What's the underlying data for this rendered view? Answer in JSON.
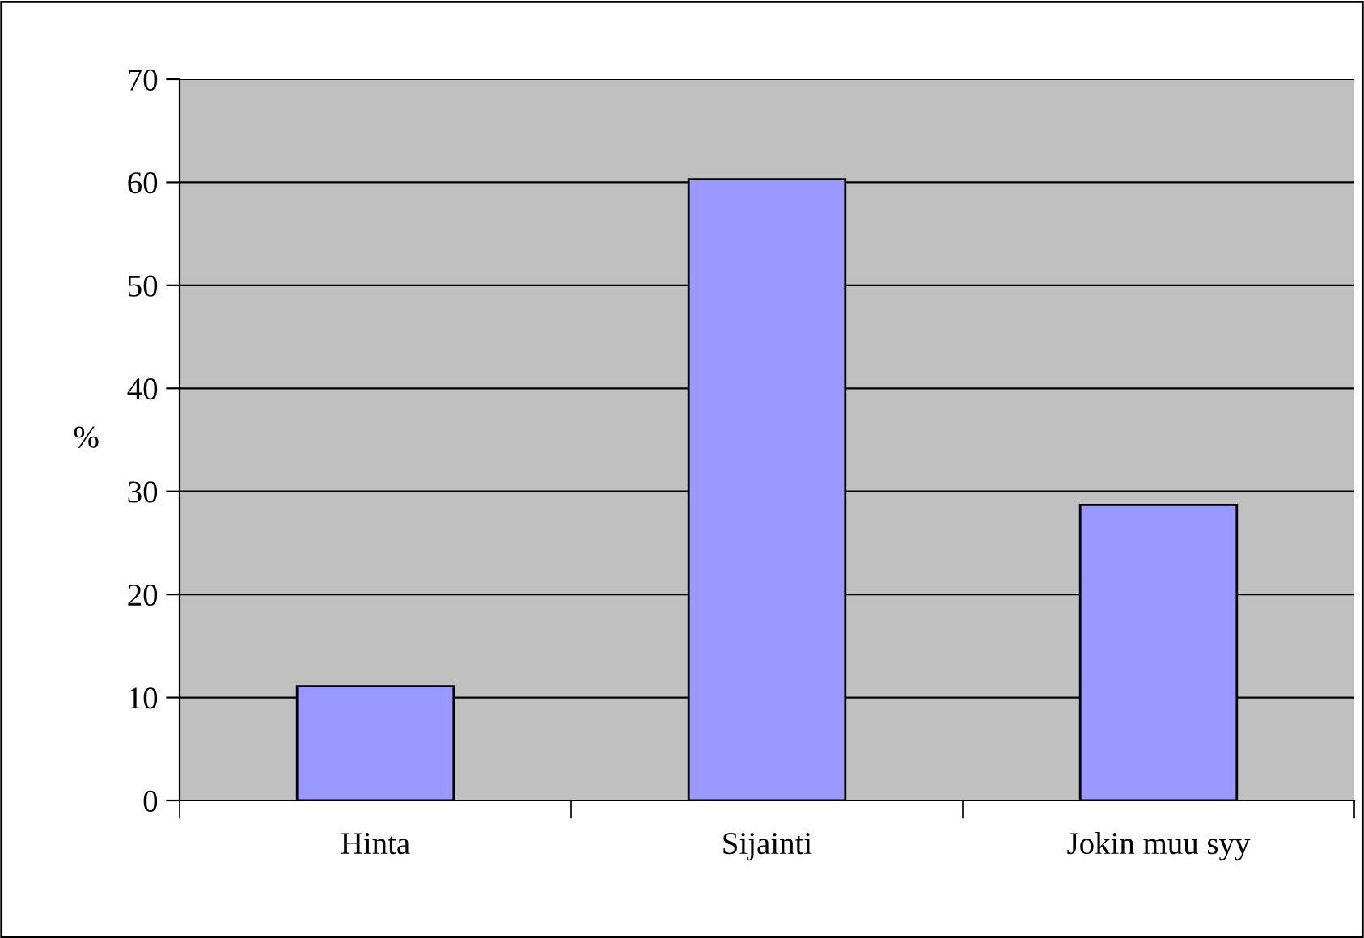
{
  "chart_data": {
    "type": "bar",
    "ylabel": "%",
    "categories": [
      "Hinta",
      "Sijainti",
      "Jokin muu syy"
    ],
    "values": [
      11.1,
      60.3,
      28.7
    ],
    "color": "#9999ff",
    "ylim": [
      0,
      70
    ],
    "yticks": [
      0,
      10,
      20,
      30,
      40,
      50,
      60,
      70
    ],
    "grid": "y"
  }
}
